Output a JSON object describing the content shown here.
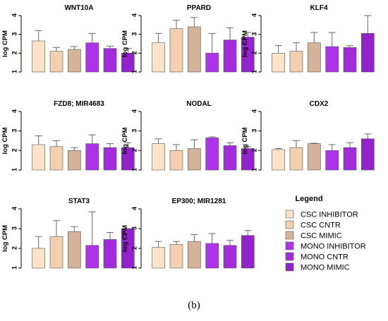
{
  "chart_data": {
    "type": "bar",
    "ylabel": "log CPM",
    "ylim": [
      1,
      4
    ],
    "yticks": [
      1,
      2,
      3,
      4
    ],
    "error_bars": true,
    "series": [
      {
        "name": "CSC INHIBITOR",
        "color": "#fae3c8"
      },
      {
        "name": "CSC CNTR",
        "color": "#f2cfae"
      },
      {
        "name": "CSC MIMIC",
        "color": "#d5b399"
      },
      {
        "name": "MONO INHIBITOR",
        "color": "#ad33e9"
      },
      {
        "name": "MONO CNTR",
        "color": "#a22bdb"
      },
      {
        "name": "MONO MIMIC",
        "color": "#9321cc"
      }
    ],
    "panels": [
      {
        "title": "WNT10A",
        "values": [
          2.65,
          2.1,
          2.2,
          2.55,
          2.25,
          2.0
        ],
        "errors": [
          0.55,
          0.2,
          0.15,
          0.5,
          0.12,
          0.25
        ]
      },
      {
        "title": "PPARD",
        "values": [
          2.55,
          3.3,
          3.4,
          2.0,
          2.7,
          2.85
        ],
        "errors": [
          0.5,
          0.45,
          0.5,
          1.05,
          0.65,
          0.25
        ]
      },
      {
        "title": "KLF4",
        "values": [
          2.0,
          2.1,
          2.55,
          2.35,
          2.3,
          3.05
        ],
        "errors": [
          0.4,
          0.45,
          0.55,
          0.75,
          0.1,
          0.95
        ]
      },
      {
        "title": "FZD8; MIR4683",
        "values": [
          2.3,
          2.2,
          2.0,
          2.35,
          2.15,
          2.15
        ],
        "errors": [
          0.45,
          0.3,
          0.15,
          0.45,
          0.2,
          0.25
        ]
      },
      {
        "title": "NODAL",
        "values": [
          2.35,
          2.0,
          2.1,
          2.65,
          2.25,
          2.1
        ],
        "errors": [
          0.25,
          0.3,
          0.45,
          0.05,
          0.15,
          0.1
        ]
      },
      {
        "title": "CDX2",
        "values": [
          2.05,
          2.15,
          2.35,
          2.0,
          2.15,
          2.6
        ],
        "errors": [
          0.05,
          0.35,
          0.02,
          0.3,
          0.25,
          0.25
        ]
      },
      {
        "title": "STAT3",
        "values": [
          2.0,
          2.6,
          2.85,
          2.15,
          2.45,
          3.0
        ],
        "errors": [
          0.6,
          0.8,
          0.25,
          1.7,
          0.35,
          0.0
        ]
      },
      {
        "title": "EP300; MIR1281",
        "values": [
          2.05,
          2.2,
          2.35,
          2.25,
          2.15,
          2.65
        ],
        "errors": [
          0.3,
          0.15,
          0.35,
          0.5,
          0.25,
          0.25
        ]
      }
    ],
    "legend_title": "Legend",
    "legend_position": "bottom-right"
  },
  "caption": "(b)"
}
